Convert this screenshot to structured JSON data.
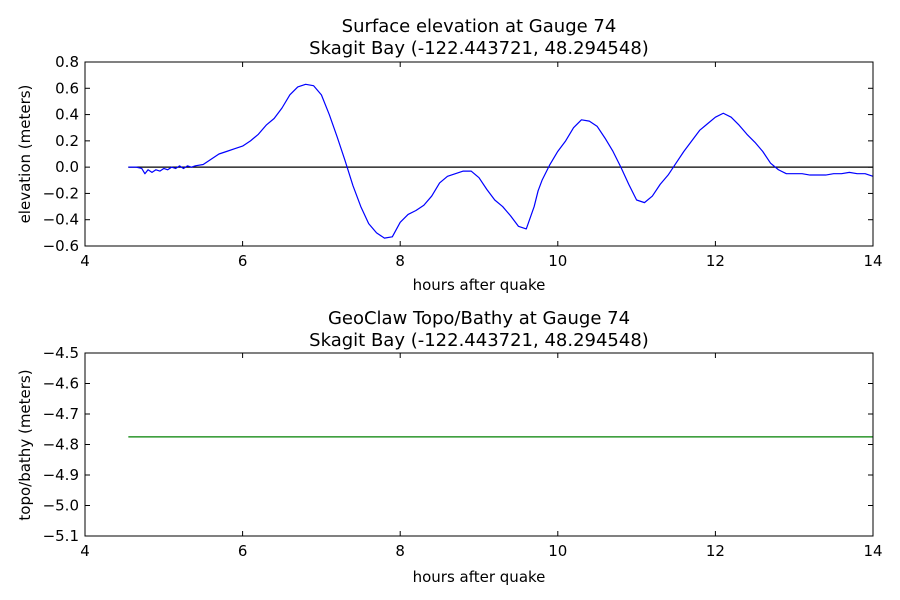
{
  "chart_data": [
    {
      "type": "line",
      "title": "Surface elevation at Gauge 74",
      "subtitle": "Skagit Bay  (-122.443721, 48.294548)",
      "xlabel": "hours after quake",
      "ylabel": "elevation (meters)",
      "xlim": [
        4,
        14
      ],
      "ylim": [
        -0.6,
        0.8
      ],
      "xticks": [
        "4",
        "6",
        "8",
        "10",
        "12",
        "14"
      ],
      "yticks": [
        "−0.6",
        "−0.4",
        "−0.2",
        "0.0",
        "0.2",
        "0.4",
        "0.6",
        "0.8"
      ],
      "grid": false,
      "reference_line": 0,
      "colors": {
        "series": "#0000ff",
        "reference": "#000000"
      },
      "series": [
        {
          "x": [
            4.55,
            4.65,
            4.72,
            4.76,
            4.8,
            4.85,
            4.9,
            4.95,
            5.0,
            5.05,
            5.1,
            5.15,
            5.2,
            5.25,
            5.3,
            5.35,
            5.4,
            5.5,
            5.6,
            5.7,
            5.8,
            5.9,
            6.0,
            6.1,
            6.2,
            6.3,
            6.4,
            6.5,
            6.6,
            6.7,
            6.8,
            6.9,
            7.0,
            7.1,
            7.2,
            7.3,
            7.4,
            7.5,
            7.6,
            7.7,
            7.8,
            7.9,
            8.0,
            8.1,
            8.2,
            8.3,
            8.4,
            8.5,
            8.6,
            8.7,
            8.8,
            8.9,
            9.0,
            9.1,
            9.2,
            9.3,
            9.4,
            9.5,
            9.6,
            9.7,
            9.75,
            9.8,
            9.9,
            10.0,
            10.1,
            10.2,
            10.3,
            10.4,
            10.5,
            10.6,
            10.7,
            10.8,
            10.9,
            11.0,
            11.1,
            11.2,
            11.3,
            11.4,
            11.5,
            11.6,
            11.7,
            11.8,
            11.9,
            12.0,
            12.1,
            12.2,
            12.3,
            12.4,
            12.5,
            12.6,
            12.7,
            12.8,
            12.9,
            13.0,
            13.1,
            13.2,
            13.3,
            13.4,
            13.5,
            13.6,
            13.7,
            13.8,
            13.9,
            14.0
          ],
          "y": [
            0.0,
            0.0,
            -0.01,
            -0.05,
            -0.02,
            -0.04,
            -0.02,
            -0.03,
            -0.01,
            -0.02,
            0.0,
            -0.01,
            0.01,
            -0.01,
            0.01,
            0.0,
            0.01,
            0.02,
            0.06,
            0.1,
            0.12,
            0.14,
            0.16,
            0.2,
            0.25,
            0.32,
            0.37,
            0.45,
            0.55,
            0.61,
            0.63,
            0.62,
            0.55,
            0.4,
            0.23,
            0.05,
            -0.14,
            -0.3,
            -0.43,
            -0.5,
            -0.54,
            -0.53,
            -0.42,
            -0.36,
            -0.33,
            -0.29,
            -0.22,
            -0.12,
            -0.07,
            -0.05,
            -0.03,
            -0.03,
            -0.08,
            -0.17,
            -0.25,
            -0.3,
            -0.37,
            -0.45,
            -0.47,
            -0.3,
            -0.18,
            -0.1,
            0.02,
            0.12,
            0.2,
            0.3,
            0.36,
            0.35,
            0.31,
            0.22,
            0.12,
            0.0,
            -0.13,
            -0.25,
            -0.27,
            -0.22,
            -0.13,
            -0.06,
            0.03,
            0.12,
            0.2,
            0.28,
            0.33,
            0.38,
            0.41,
            0.38,
            0.32,
            0.25,
            0.19,
            0.12,
            0.03,
            -0.02,
            -0.05,
            -0.05,
            -0.05,
            -0.06,
            -0.06,
            -0.06,
            -0.05,
            -0.05,
            -0.04,
            -0.05,
            -0.05,
            -0.07
          ]
        }
      ]
    },
    {
      "type": "line",
      "title": "GeoClaw Topo/Bathy at Gauge 74",
      "subtitle": "Skagit Bay  (-122.443721, 48.294548)",
      "xlabel": "hours after quake",
      "ylabel": "topo/bathy (meters)",
      "xlim": [
        4,
        14
      ],
      "ylim": [
        -5.1,
        -4.5
      ],
      "xticks": [
        "4",
        "6",
        "8",
        "10",
        "12",
        "14"
      ],
      "yticks": [
        "−5.1",
        "−5.0",
        "−4.9",
        "−4.8",
        "−4.7",
        "−4.6",
        "−4.5"
      ],
      "grid": false,
      "colors": {
        "series": "#008000"
      },
      "series": [
        {
          "x": [
            4.55,
            14.0
          ],
          "y": [
            -4.775,
            -4.775
          ]
        }
      ]
    }
  ]
}
